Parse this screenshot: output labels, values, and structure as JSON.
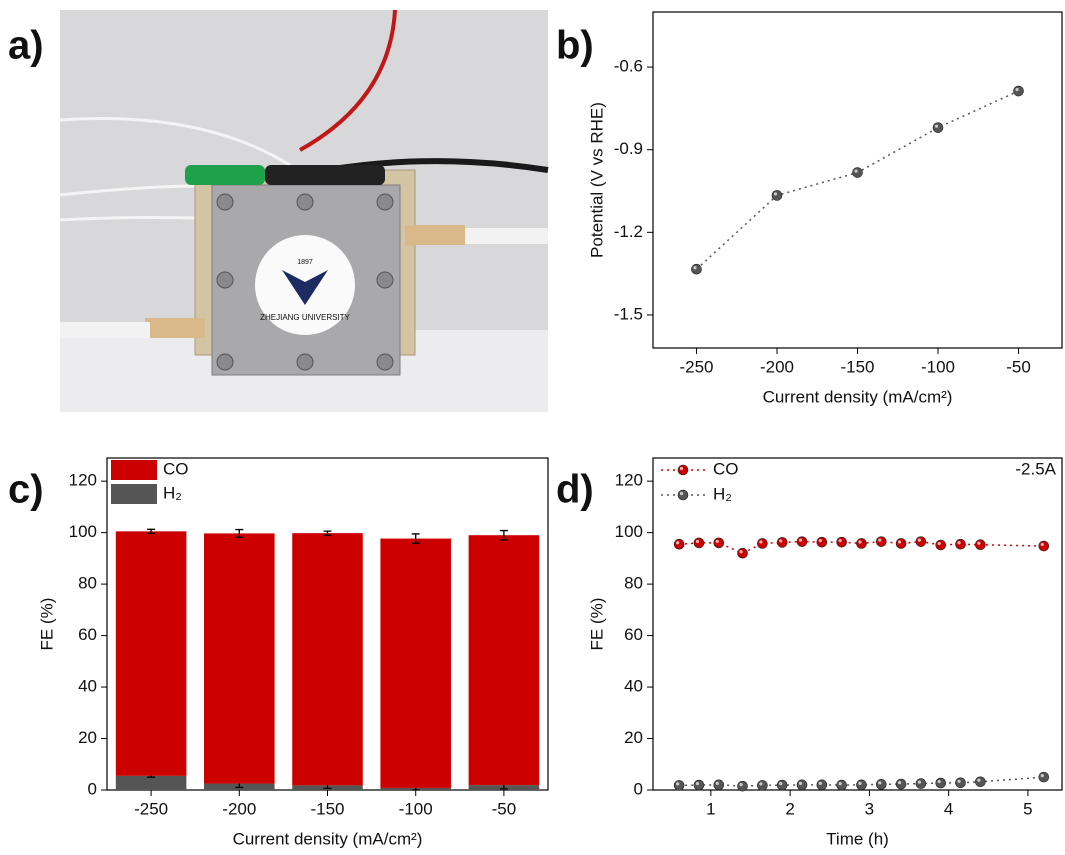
{
  "photo": {
    "panel_label": "a)",
    "logo_text": "ZHEJIANG UNIVERSITY",
    "logo_year": "1897"
  },
  "chart_data": [
    {
      "type": "line",
      "panel_label": "b)",
      "x_label": "Current density (mA/cm²)",
      "y_label": "Potential (V vs RHE)",
      "x": [
        -250,
        -200,
        -150,
        -100,
        -50
      ],
      "values": [
        -1.334,
        -1.066,
        -0.983,
        -0.82,
        -0.687
      ],
      "color": "#555555",
      "line_style": "dotted",
      "xlim": [
        -277,
        -23
      ],
      "xticks": [
        -250,
        -200,
        -150,
        -100,
        -50
      ],
      "ylim": [
        -1.62,
        -0.4
      ],
      "yticks": [
        -1.5,
        -1.2,
        -0.9,
        -0.6
      ]
    },
    {
      "type": "bar",
      "stacked": true,
      "panel_label": "c)",
      "x_label": "Current density (mA/cm²)",
      "y_label": "FE (%)",
      "categories": [
        "-250",
        "-200",
        "-150",
        "-100",
        "-50"
      ],
      "series": [
        {
          "name": "CO",
          "color": "#cc0000",
          "values": [
            95,
            97.2,
            98,
            96.9,
            97.1
          ],
          "errors": [
            0.8,
            1.5,
            0.8,
            1.8,
            1.8
          ]
        },
        {
          "name": "H₂",
          "color": "#555555",
          "values": [
            5.5,
            2.5,
            1.8,
            0.8,
            1.9
          ],
          "errors": [
            0.5,
            1.5,
            1.2,
            0.8,
            1.5
          ]
        }
      ],
      "ylim": [
        0,
        129
      ],
      "yticks": [
        0,
        20,
        40,
        60,
        80,
        100,
        120
      ],
      "legend": "top-left"
    },
    {
      "type": "line",
      "panel_label": "d)",
      "x_label": "Time (h)",
      "y_label": "FE (%)",
      "annotation": "-2.5A",
      "x": [
        0.6,
        0.85,
        1.1,
        1.4,
        1.65,
        1.9,
        2.15,
        2.4,
        2.65,
        2.9,
        3.15,
        3.4,
        3.65,
        3.9,
        4.15,
        4.4,
        5.2
      ],
      "series": [
        {
          "name": "CO",
          "color": "#cc0000",
          "values": [
            95.5,
            96,
            96,
            92,
            95.8,
            96.2,
            96.5,
            96.3,
            96.3,
            95.8,
            96.5,
            95.8,
            96.5,
            95.2,
            95.5,
            95.3,
            94.8
          ]
        },
        {
          "name": "H₂",
          "color": "#555555",
          "values": [
            1.8,
            1.9,
            2,
            1.5,
            1.8,
            1.9,
            2,
            2,
            1.9,
            2,
            2.2,
            2.3,
            2.5,
            2.7,
            2.8,
            3.2,
            5
          ]
        }
      ],
      "line_style": "dotted",
      "legend": "top-left",
      "xlim": [
        0.27,
        5.43
      ],
      "xticks": [
        1,
        2,
        3,
        4,
        5
      ],
      "ylim": [
        0,
        129
      ],
      "yticks": [
        0,
        20,
        40,
        60,
        80,
        100,
        120
      ]
    }
  ]
}
